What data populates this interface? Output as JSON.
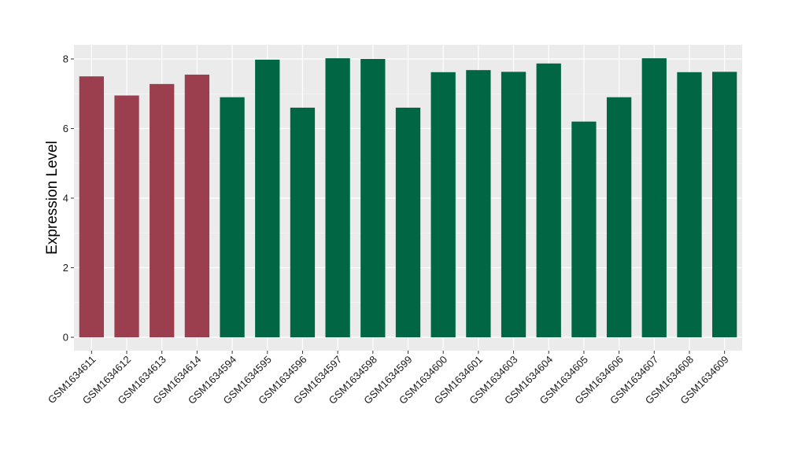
{
  "colors": {
    "panel_bg": "#EBEBEB",
    "grid_major": "#FFFFFF",
    "grid_minor": "#F5F5F5",
    "tick": "#333333"
  },
  "chart_data": {
    "type": "bar",
    "title": "",
    "xlabel": "",
    "ylabel": "Expression Level",
    "ylim": [
      0,
      8.4
    ],
    "yticks": [
      0,
      2,
      4,
      6,
      8
    ],
    "grid": true,
    "legend": "none",
    "categories": [
      "GSM1634611",
      "GSM1634612",
      "GSM1634613",
      "GSM1634614",
      "GSM1634594",
      "GSM1634595",
      "GSM1634596",
      "GSM1634597",
      "GSM1634598",
      "GSM1634599",
      "GSM1634600",
      "GSM1634601",
      "GSM1634603",
      "GSM1634604",
      "GSM1634605",
      "GSM1634606",
      "GSM1634607",
      "GSM1634608",
      "GSM1634609"
    ],
    "values": [
      7.5,
      6.95,
      7.28,
      7.55,
      6.9,
      7.98,
      6.6,
      8.02,
      8.0,
      6.6,
      7.62,
      7.68,
      7.63,
      7.87,
      6.2,
      6.9,
      8.02,
      7.62,
      7.63
    ],
    "bar_colors": [
      "#9B3F4F",
      "#9B3F4F",
      "#9B3F4F",
      "#9B3F4F",
      "#006644",
      "#006644",
      "#006644",
      "#006644",
      "#006644",
      "#006644",
      "#006644",
      "#006644",
      "#006644",
      "#006644",
      "#006644",
      "#006644",
      "#006644",
      "#006644",
      "#006644"
    ]
  }
}
